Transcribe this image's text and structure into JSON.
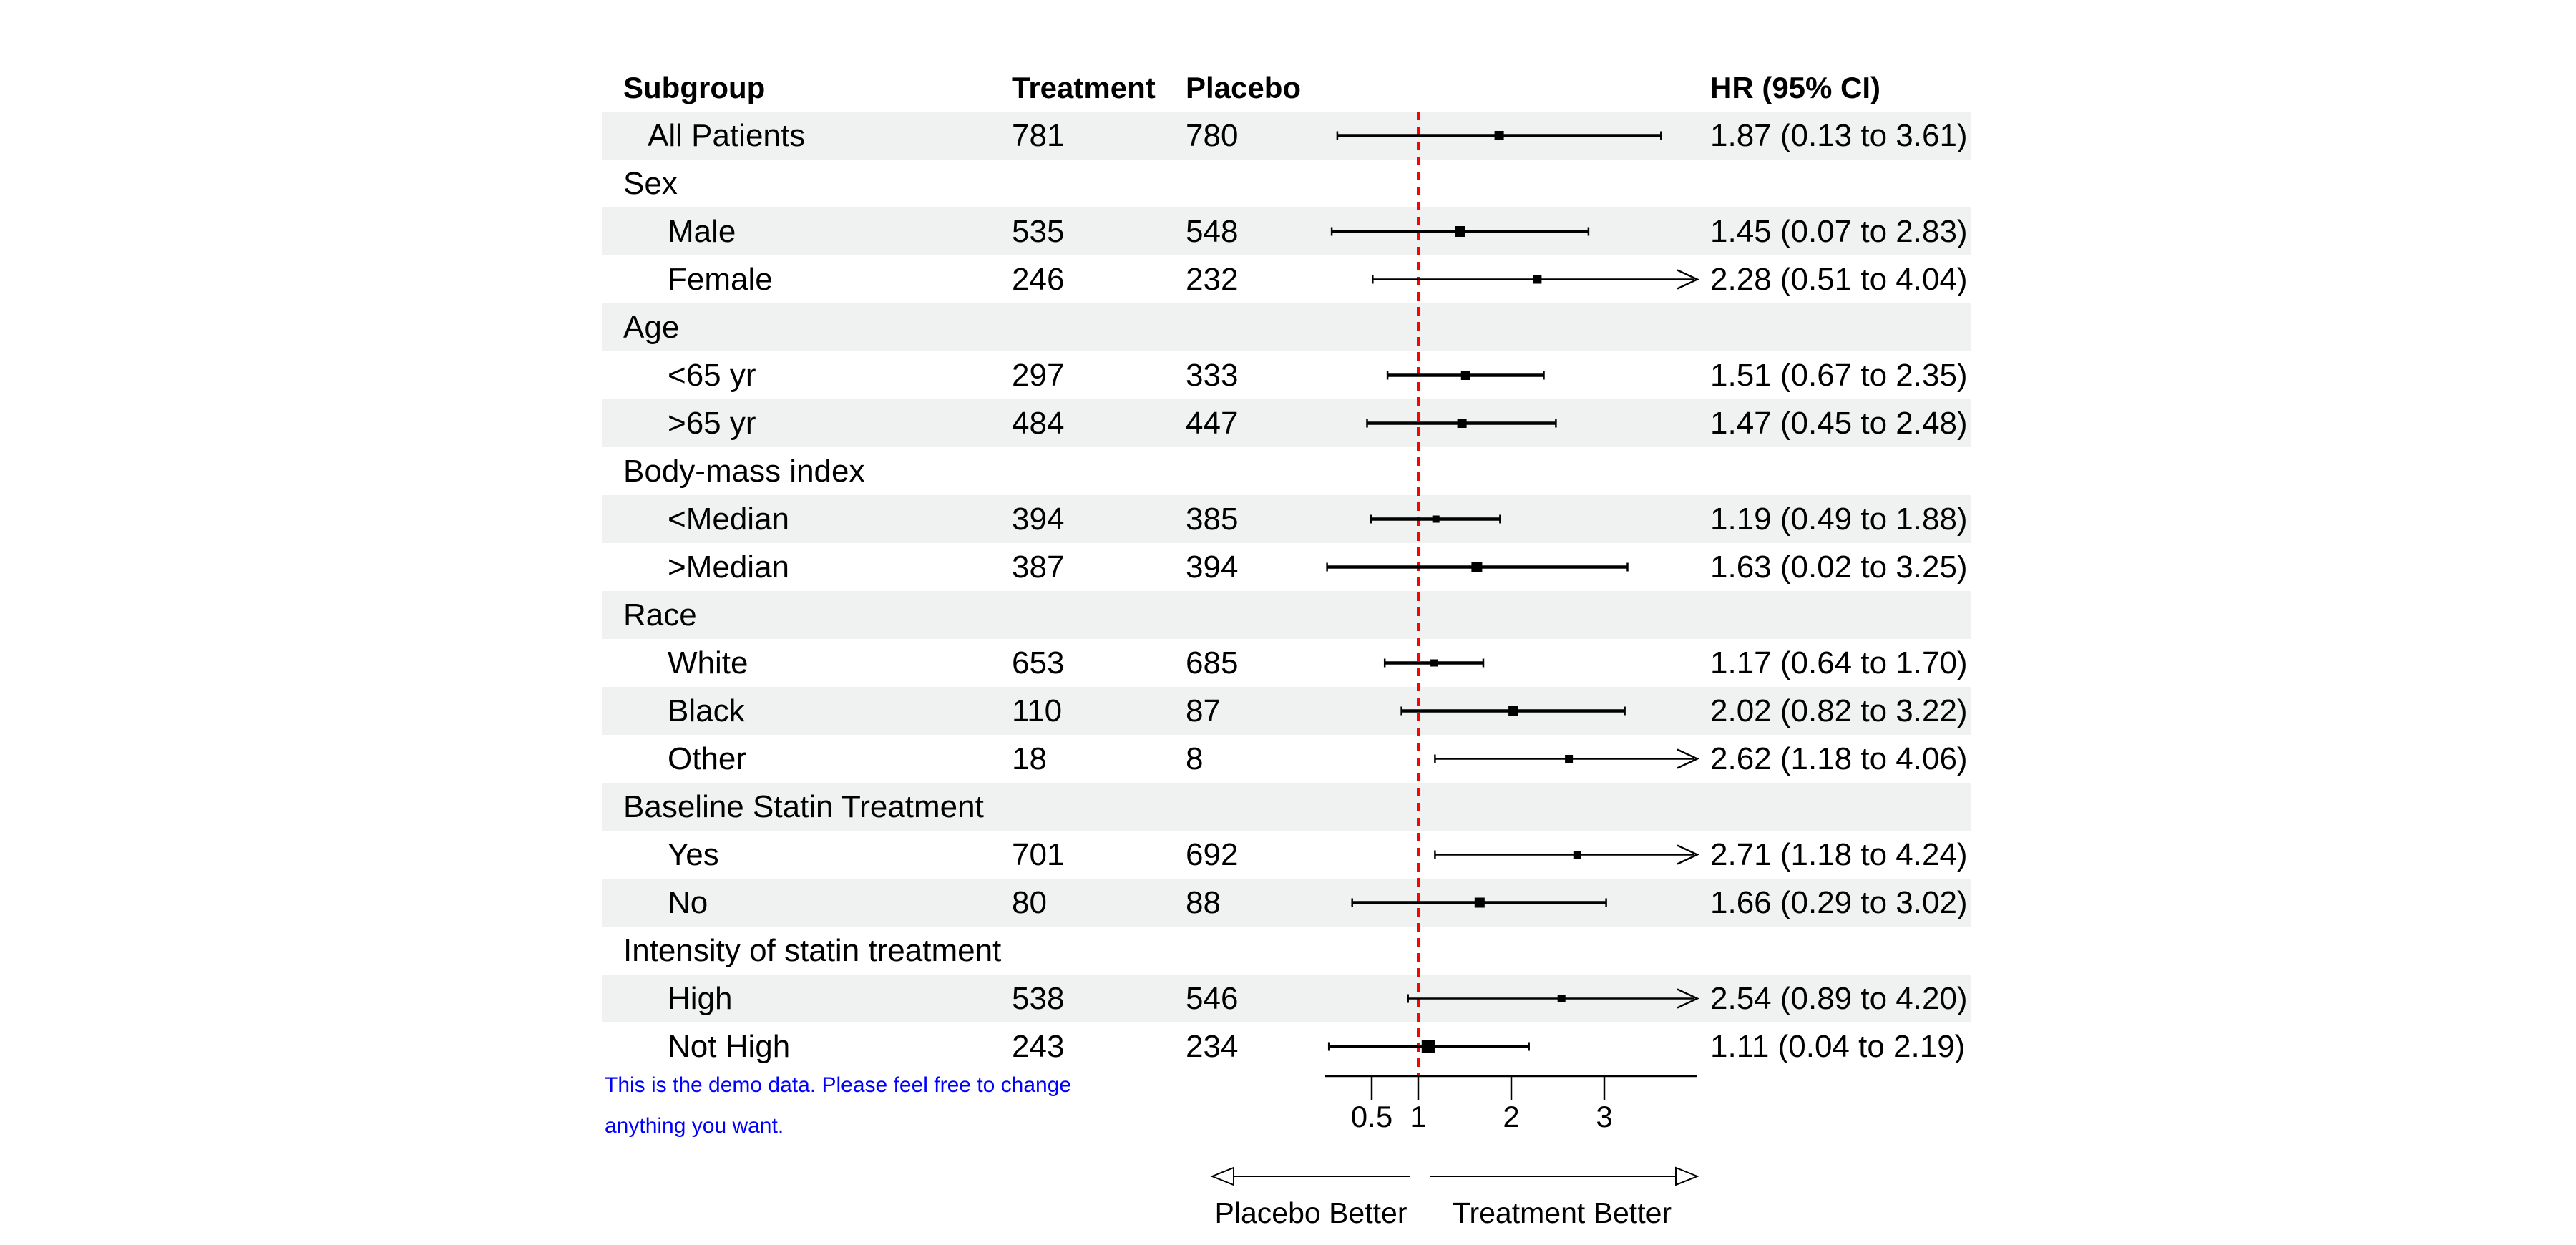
{
  "colors": {
    "row_band": "#eff2f1",
    "reference_line": "#ff0000",
    "ci_color": "#000000",
    "text": "#000000",
    "footnote": "#0000ff"
  },
  "table_headers": {
    "subgroup": "Subgroup",
    "treatment": "Treatment",
    "placebo": "Placebo",
    "hr": "HR (95% CI)"
  },
  "direction_labels": {
    "left": "Placebo Better",
    "right": "Treatment Better"
  },
  "footnote": {
    "line1": "This is the demo data. Please feel free to change",
    "line2": "anything you want."
  },
  "chart_data": {
    "type": "scatter",
    "subtype": "forest-plot",
    "x_scale": "linear",
    "xlim": [
      0,
      4
    ],
    "x_ticks": [
      0.5,
      1,
      2,
      3
    ],
    "x_tick_labels": [
      "0.5",
      "1",
      "2",
      "3"
    ],
    "reference_line": 1,
    "clip_max": 4,
    "legend": "none",
    "grid": false,
    "rows": [
      {
        "row_type": "summary",
        "label": "All Patients",
        "indent": 1,
        "treatment": "781",
        "placebo": "780",
        "hr_label": "1.87 (0.13 to 3.61)",
        "est": 1.87,
        "low": 0.13,
        "high": 3.61,
        "clipped_arrow": false,
        "shaded": true,
        "box": 13
      },
      {
        "row_type": "group",
        "label": "Sex",
        "indent": 0,
        "treatment": "",
        "placebo": "",
        "hr_label": "",
        "est": null,
        "low": null,
        "high": null,
        "clipped_arrow": false,
        "shaded": false,
        "box": 0
      },
      {
        "row_type": "item",
        "label": "Male",
        "indent": 2,
        "treatment": "535",
        "placebo": "548",
        "hr_label": "1.45 (0.07 to 2.83)",
        "est": 1.45,
        "low": 0.07,
        "high": 2.83,
        "clipped_arrow": false,
        "shaded": true,
        "box": 15
      },
      {
        "row_type": "item",
        "label": "Female",
        "indent": 2,
        "treatment": "246",
        "placebo": "232",
        "hr_label": "2.28 (0.51 to 4.04)",
        "est": 2.28,
        "low": 0.51,
        "high": 4.04,
        "clipped_arrow": true,
        "shaded": false,
        "box": 12
      },
      {
        "row_type": "group",
        "label": "Age",
        "indent": 0,
        "treatment": "",
        "placebo": "",
        "hr_label": "",
        "est": null,
        "low": null,
        "high": null,
        "clipped_arrow": false,
        "shaded": true,
        "box": 0
      },
      {
        "row_type": "item",
        "label": "<65 yr",
        "indent": 2,
        "treatment": "297",
        "placebo": "333",
        "hr_label": "1.51 (0.67 to 2.35)",
        "est": 1.51,
        "low": 0.67,
        "high": 2.35,
        "clipped_arrow": false,
        "shaded": false,
        "box": 13
      },
      {
        "row_type": "item",
        "label": ">65 yr",
        "indent": 2,
        "treatment": "484",
        "placebo": "447",
        "hr_label": "1.47 (0.45 to 2.48)",
        "est": 1.47,
        "low": 0.45,
        "high": 2.48,
        "clipped_arrow": false,
        "shaded": true,
        "box": 13
      },
      {
        "row_type": "group",
        "label": "Body-mass index",
        "indent": 0,
        "treatment": "",
        "placebo": "",
        "hr_label": "",
        "est": null,
        "low": null,
        "high": null,
        "clipped_arrow": false,
        "shaded": false,
        "box": 0
      },
      {
        "row_type": "item",
        "label": "<Median",
        "indent": 2,
        "treatment": "394",
        "placebo": "385",
        "hr_label": "1.19 (0.49 to 1.88)",
        "est": 1.19,
        "low": 0.49,
        "high": 1.88,
        "clipped_arrow": false,
        "shaded": true,
        "box": 10
      },
      {
        "row_type": "item",
        "label": ">Median",
        "indent": 2,
        "treatment": "387",
        "placebo": "394",
        "hr_label": "1.63 (0.02 to 3.25)",
        "est": 1.63,
        "low": 0.02,
        "high": 3.25,
        "clipped_arrow": false,
        "shaded": false,
        "box": 15
      },
      {
        "row_type": "group",
        "label": "Race",
        "indent": 0,
        "treatment": "",
        "placebo": "",
        "hr_label": "",
        "est": null,
        "low": null,
        "high": null,
        "clipped_arrow": false,
        "shaded": true,
        "box": 0
      },
      {
        "row_type": "item",
        "label": "White",
        "indent": 2,
        "treatment": "653",
        "placebo": "685",
        "hr_label": "1.17 (0.64 to 1.70)",
        "est": 1.17,
        "low": 0.64,
        "high": 1.7,
        "clipped_arrow": false,
        "shaded": false,
        "box": 10
      },
      {
        "row_type": "item",
        "label": "Black",
        "indent": 2,
        "treatment": "110",
        "placebo": "87",
        "hr_label": "2.02 (0.82 to 3.22)",
        "est": 2.02,
        "low": 0.82,
        "high": 3.22,
        "clipped_arrow": false,
        "shaded": true,
        "box": 13
      },
      {
        "row_type": "item",
        "label": "Other",
        "indent": 2,
        "treatment": "18",
        "placebo": "8",
        "hr_label": "2.62 (1.18 to 4.06)",
        "est": 2.62,
        "low": 1.18,
        "high": 4.06,
        "clipped_arrow": true,
        "shaded": false,
        "box": 11
      },
      {
        "row_type": "group",
        "label": "Baseline Statin Treatment",
        "indent": 0,
        "treatment": "",
        "placebo": "",
        "hr_label": "",
        "est": null,
        "low": null,
        "high": null,
        "clipped_arrow": false,
        "shaded": true,
        "box": 0
      },
      {
        "row_type": "item",
        "label": "Yes",
        "indent": 2,
        "treatment": "701",
        "placebo": "692",
        "hr_label": "2.71 (1.18 to 4.24)",
        "est": 2.71,
        "low": 1.18,
        "high": 4.24,
        "clipped_arrow": true,
        "shaded": false,
        "box": 11
      },
      {
        "row_type": "item",
        "label": "No",
        "indent": 2,
        "treatment": "80",
        "placebo": "88",
        "hr_label": "1.66 (0.29 to 3.02)",
        "est": 1.66,
        "low": 0.29,
        "high": 3.02,
        "clipped_arrow": false,
        "shaded": true,
        "box": 14
      },
      {
        "row_type": "group",
        "label": "Intensity of statin treatment",
        "indent": 0,
        "treatment": "",
        "placebo": "",
        "hr_label": "",
        "est": null,
        "low": null,
        "high": null,
        "clipped_arrow": false,
        "shaded": false,
        "box": 0
      },
      {
        "row_type": "item",
        "label": "High",
        "indent": 2,
        "treatment": "538",
        "placebo": "546",
        "hr_label": "2.54 (0.89 to 4.20)",
        "est": 2.54,
        "low": 0.89,
        "high": 4.2,
        "clipped_arrow": true,
        "shaded": true,
        "box": 11
      },
      {
        "row_type": "item",
        "label": "Not High",
        "indent": 2,
        "treatment": "243",
        "placebo": "234",
        "hr_label": "1.11 (0.04 to 2.19)",
        "est": 1.11,
        "low": 0.04,
        "high": 2.19,
        "clipped_arrow": false,
        "shaded": false,
        "box": 19
      }
    ]
  }
}
